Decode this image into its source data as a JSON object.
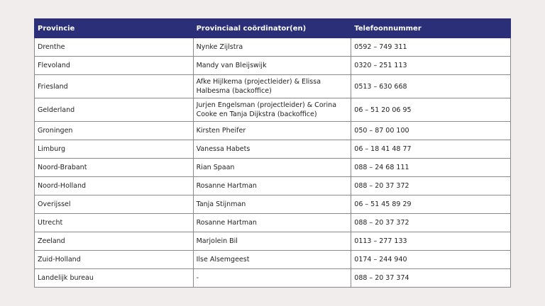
{
  "table": {
    "header_color": "#2b2f78",
    "headers": [
      "Provincie",
      "Provinciaal coördinator(en)",
      "Telefoonnummer"
    ],
    "rows": [
      [
        "Drenthe",
        "Nynke Zijlstra",
        "0592 – 749 311"
      ],
      [
        "Flevoland",
        "Mandy van Bleijswijk",
        "0320 – 251 113"
      ],
      [
        "Friesland",
        "Afke Hijlkema (projectleider) & Elissa Halbesma (backoffice)",
        "0513 – 630 668"
      ],
      [
        "Gelderland",
        "Jurjen Engelsman (projectleider) & Corina Cooke en Tanja Dijkstra (backoffice)",
        "06 – 51 20 06 95"
      ],
      [
        "Groningen",
        "Kirsten Pheifer",
        "050 – 87 00 100"
      ],
      [
        "Limburg",
        "Vanessa Habets",
        "06 – 18 41 48 77"
      ],
      [
        "Noord-Brabant",
        "Rian Spaan",
        "088 – 24 68 111"
      ],
      [
        "Noord-Holland",
        "Rosanne Hartman",
        "088 – 20 37 372"
      ],
      [
        "Overijssel",
        "Tanja Stijnman",
        "06 – 51 45 89 29"
      ],
      [
        "Utrecht",
        "Rosanne Hartman",
        "088 – 20 37 372"
      ],
      [
        "Zeeland",
        "Marjolein Bil",
        "0113 – 277 133"
      ],
      [
        "Zuid-Holland",
        "Ilse Alsemgeest",
        "0174 – 244 940"
      ],
      [
        "Landelijk bureau",
        "-",
        "088 – 20 37 374"
      ]
    ]
  }
}
